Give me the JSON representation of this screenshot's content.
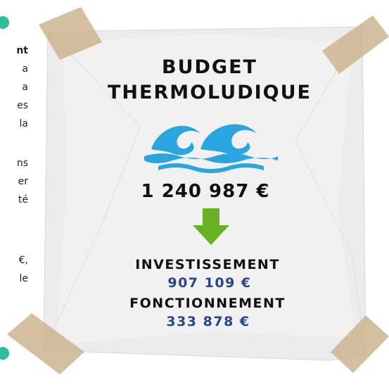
{
  "left_text": [
    "nt",
    "a",
    "a",
    "es",
    "la",
    "ns",
    "er",
    "té",
    "€,",
    "le"
  ],
  "card": {
    "title": [
      "BUDGET",
      "THERMOLUDIQUE"
    ],
    "total": "1 240 987 €",
    "items": [
      {
        "label": "INVESTISSEMENT",
        "amount": "907 109 €"
      },
      {
        "label": "FONCTIONNEMENT",
        "amount": "333 878 €"
      }
    ]
  }
}
